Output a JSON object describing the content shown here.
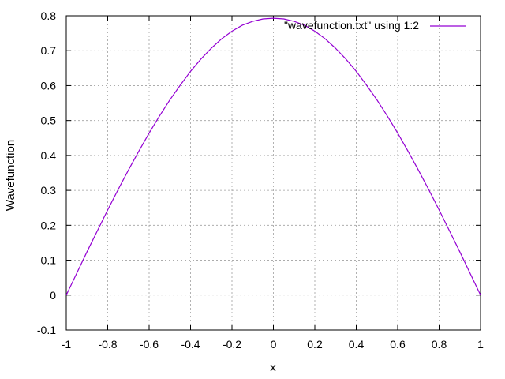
{
  "chart_data": {
    "type": "line",
    "title": "",
    "xlabel": "x",
    "ylabel": "Wavefunction",
    "xlim": [
      -1,
      1
    ],
    "ylim": [
      -0.1,
      0.8
    ],
    "xticks": [
      "-1",
      "-0.8",
      "-0.6",
      "-0.4",
      "-0.2",
      "0",
      "0.2",
      "0.4",
      "0.6",
      "0.8",
      "1"
    ],
    "yticks": [
      "-0.1",
      "0",
      "0.1",
      "0.2",
      "0.3",
      "0.4",
      "0.5",
      "0.6",
      "0.7",
      "0.8"
    ],
    "grid": true,
    "legend_position": "top-right",
    "series": [
      {
        "name": "\"wavefunction.txt\" using 1:2",
        "color": "#9400d3",
        "x": [
          -1.0,
          -0.95,
          -0.9,
          -0.85,
          -0.8,
          -0.75,
          -0.7,
          -0.65,
          -0.6,
          -0.55,
          -0.5,
          -0.45,
          -0.4,
          -0.35,
          -0.3,
          -0.25,
          -0.2,
          -0.15,
          -0.1,
          -0.05,
          0.0,
          0.05,
          0.1,
          0.15,
          0.2,
          0.25,
          0.3,
          0.35,
          0.4,
          0.45,
          0.5,
          0.55,
          0.6,
          0.65,
          0.7,
          0.75,
          0.8,
          0.85,
          0.9,
          0.95,
          1.0
        ],
        "y": [
          0.0,
          0.062,
          0.124,
          0.184,
          0.244,
          0.302,
          0.358,
          0.412,
          0.464,
          0.513,
          0.559,
          0.601,
          0.641,
          0.676,
          0.707,
          0.734,
          0.756,
          0.773,
          0.784,
          0.791,
          0.793,
          0.791,
          0.784,
          0.773,
          0.756,
          0.734,
          0.707,
          0.676,
          0.641,
          0.601,
          0.559,
          0.513,
          0.464,
          0.412,
          0.358,
          0.302,
          0.244,
          0.184,
          0.124,
          0.062,
          0.0
        ]
      }
    ]
  }
}
